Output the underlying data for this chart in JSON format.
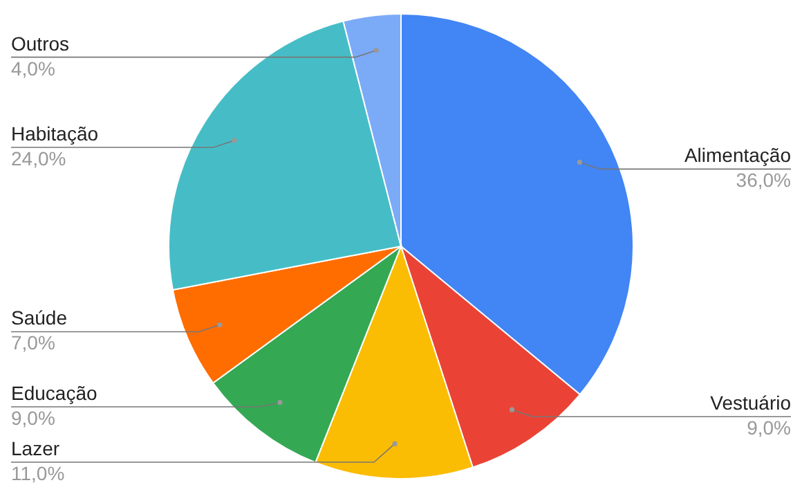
{
  "chart_data": {
    "type": "pie",
    "categories": [
      "Alimentação",
      "Vestuário",
      "Lazer",
      "Educação",
      "Saúde",
      "Habitação",
      "Outros"
    ],
    "values": [
      36,
      9,
      11,
      9,
      7,
      24,
      4
    ],
    "value_labels": [
      "36,0%",
      "9,0%",
      "11,0%",
      "9,0%",
      "7,0%",
      "24,0%",
      "4,0%"
    ],
    "colors": [
      "#4285f4",
      "#ea4335",
      "#fbbc04",
      "#34a853",
      "#ff6d01",
      "#46bdc6",
      "#7baaf7"
    ]
  }
}
